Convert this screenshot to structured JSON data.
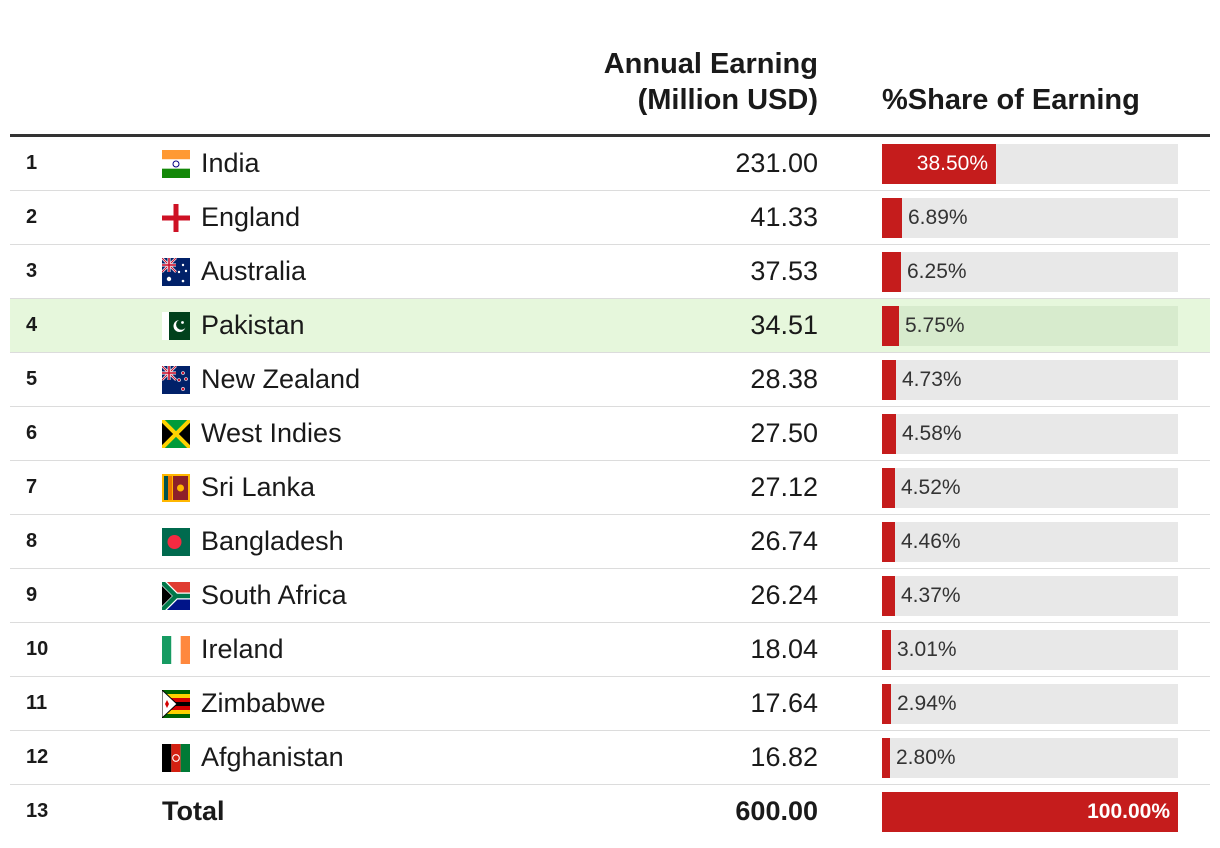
{
  "chart_data": {
    "type": "table",
    "columns": {
      "earning_line1": "Annual Earning",
      "earning_line2": "(Million USD)",
      "share": "%Share of Earning"
    },
    "rows": [
      {
        "rank": "1",
        "country": "India",
        "flag": "india-flag",
        "earning": "231.00",
        "share": 38.5,
        "share_label": "38.50%"
      },
      {
        "rank": "2",
        "country": "England",
        "flag": "england-flag",
        "earning": "41.33",
        "share": 6.89,
        "share_label": "6.89%"
      },
      {
        "rank": "3",
        "country": "Australia",
        "flag": "australia-flag",
        "earning": "37.53",
        "share": 6.25,
        "share_label": "6.25%"
      },
      {
        "rank": "4",
        "country": "Pakistan",
        "flag": "pakistan-flag",
        "earning": "34.51",
        "share": 5.75,
        "share_label": "5.75%",
        "highlight": true
      },
      {
        "rank": "5",
        "country": "New Zealand",
        "flag": "new-zealand-flag",
        "earning": "28.38",
        "share": 4.73,
        "share_label": "4.73%"
      },
      {
        "rank": "6",
        "country": "West Indies",
        "flag": "west-indies-flag",
        "earning": "27.50",
        "share": 4.58,
        "share_label": "4.58%"
      },
      {
        "rank": "7",
        "country": "Sri Lanka",
        "flag": "sri-lanka-flag",
        "earning": "27.12",
        "share": 4.52,
        "share_label": "4.52%"
      },
      {
        "rank": "8",
        "country": "Bangladesh",
        "flag": "bangladesh-flag",
        "earning": "26.74",
        "share": 4.46,
        "share_label": "4.46%"
      },
      {
        "rank": "9",
        "country": "South Africa",
        "flag": "south-africa-flag",
        "earning": "26.24",
        "share": 4.37,
        "share_label": "4.37%"
      },
      {
        "rank": "10",
        "country": "Ireland",
        "flag": "ireland-flag",
        "earning": "18.04",
        "share": 3.01,
        "share_label": "3.01%"
      },
      {
        "rank": "11",
        "country": "Zimbabwe",
        "flag": "zimbabwe-flag",
        "earning": "17.64",
        "share": 2.94,
        "share_label": "2.94%"
      },
      {
        "rank": "12",
        "country": "Afghanistan",
        "flag": "afghanistan-flag",
        "earning": "16.82",
        "share": 2.8,
        "share_label": "2.80%"
      }
    ],
    "total": {
      "rank": "13",
      "label": "Total",
      "earning": "600.00",
      "share": 100.0,
      "share_label": "100.00%"
    },
    "share_range": [
      0,
      100
    ]
  },
  "colors": {
    "bar": "#c51c1c",
    "track": "#e8e8e8",
    "highlight_row": "#e6f7dc",
    "header_rule": "#333333"
  }
}
